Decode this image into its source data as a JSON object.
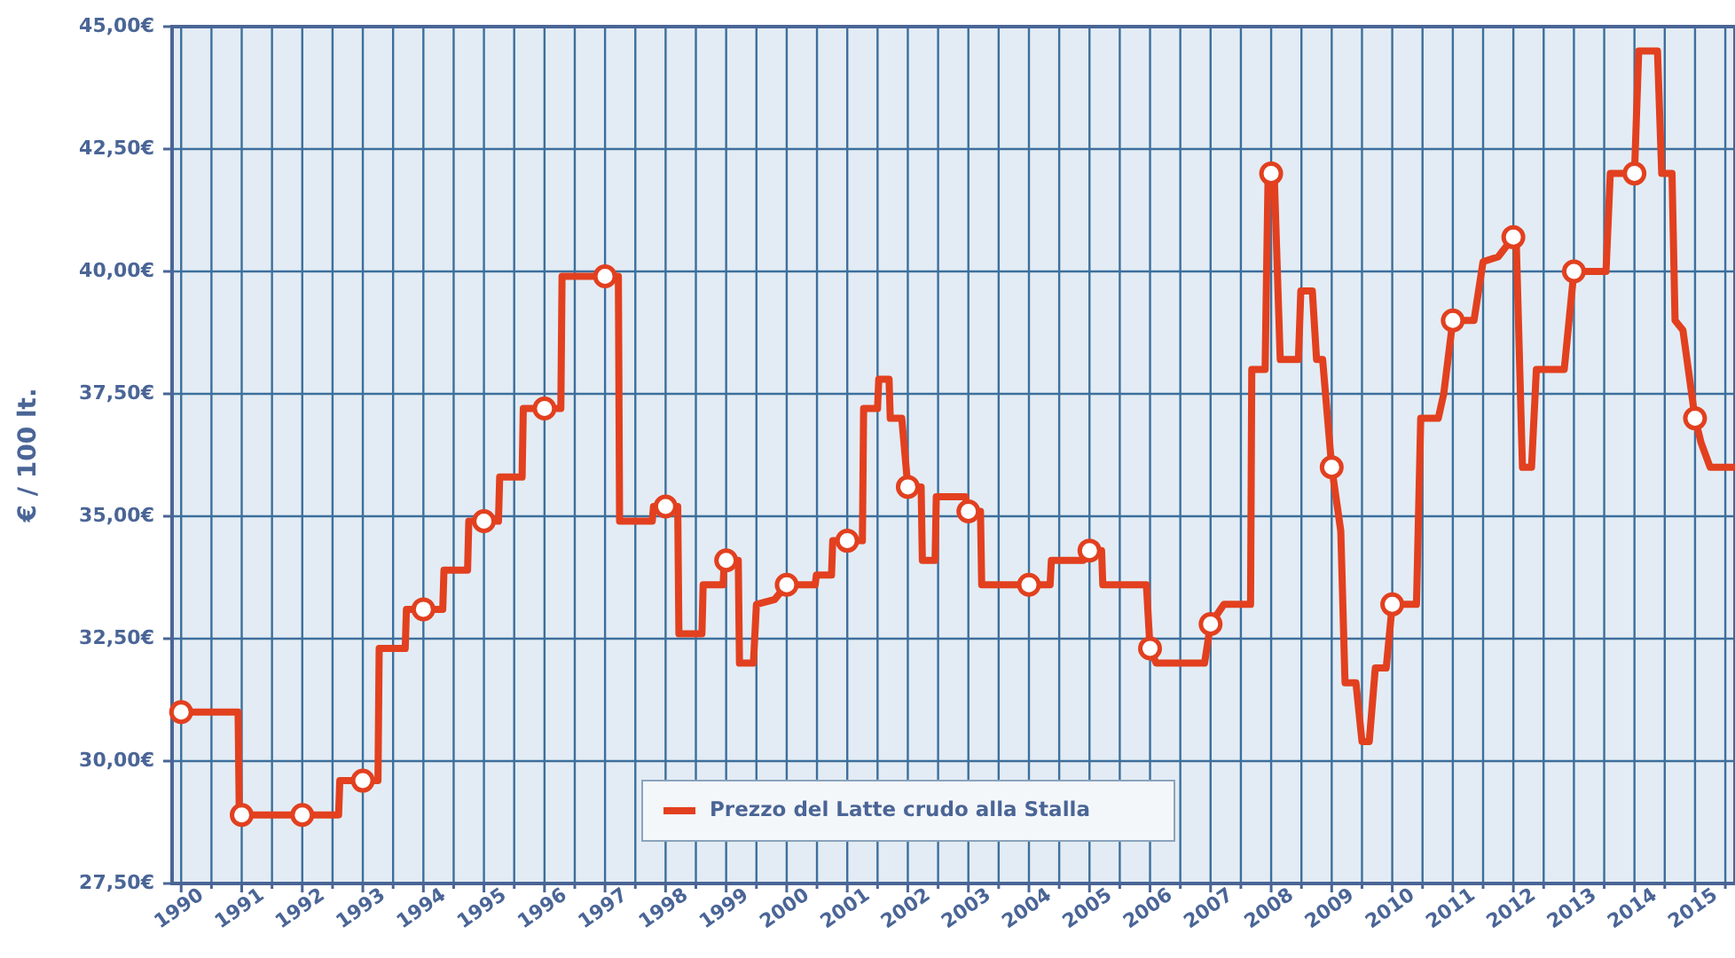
{
  "chart_data": {
    "type": "line",
    "ylabel": "€ / 100 lt.",
    "legend": "bottom",
    "grid": true,
    "xlim": [
      1989.85,
      2015.66
    ],
    "ylim": [
      27.5,
      45
    ],
    "xticks": [
      1990,
      {
        "value": 1990.5,
        "label": null
      },
      1991,
      {
        "value": 1991.5,
        "label": null
      },
      1992,
      {
        "value": 1992.5,
        "label": null
      },
      1993,
      {
        "value": 1993.5,
        "label": null
      },
      1994,
      {
        "value": 1994.5,
        "label": null
      },
      1995,
      {
        "value": 1995.5,
        "label": null
      },
      1996,
      {
        "value": 1996.5,
        "label": null
      },
      1997,
      {
        "value": 1997.5,
        "label": null
      },
      1998,
      {
        "value": 1998.5,
        "label": null
      },
      1999,
      {
        "value": 1999.5,
        "label": null
      },
      2000,
      {
        "value": 2000.5,
        "label": null
      },
      2001,
      {
        "value": 2001.5,
        "label": null
      },
      2002,
      {
        "value": 2002.5,
        "label": null
      },
      2003,
      {
        "value": 2003.5,
        "label": null
      },
      2004,
      {
        "value": 2004.5,
        "label": null
      },
      2005,
      {
        "value": 2005.5,
        "label": null
      },
      2006,
      {
        "value": 2006.5,
        "label": null
      },
      2007,
      {
        "value": 2007.5,
        "label": null
      },
      2008,
      {
        "value": 2008.5,
        "label": null
      },
      2009,
      {
        "value": 2009.5,
        "label": null
      },
      2010,
      {
        "value": 2010.5,
        "label": null
      },
      2011,
      {
        "value": 2011.5,
        "label": null
      },
      2012,
      {
        "value": 2012.5,
        "label": null
      },
      2013,
      {
        "value": 2013.5,
        "label": null
      },
      2014,
      {
        "value": 2014.5,
        "label": null
      },
      2015,
      {
        "value": 2015.5,
        "label": null
      }
    ],
    "yticks": [
      {
        "value": 27.5,
        "label": "27,50€"
      },
      {
        "value": 30,
        "label": "30,00€"
      },
      {
        "value": 32.5,
        "label": "32,50€"
      },
      {
        "value": 35,
        "label": "35,00€"
      },
      {
        "value": 37.5,
        "label": "37,50€"
      },
      {
        "value": 40,
        "label": "40,00€"
      },
      {
        "value": 42.5,
        "label": "42,50€"
      },
      {
        "value": 45,
        "label": "45,00€"
      }
    ],
    "series": [
      {
        "name": "Prezzo del Latte crudo alla Stalla",
        "marker": "none",
        "color": "#e2401f",
        "x": [
          1990,
          1990.94,
          1990.96,
          1992.6,
          1992.62,
          1993.25,
          1993.27,
          1993.7,
          1993.72,
          1994.32,
          1994.34,
          1994.73,
          1994.75,
          1995.24,
          1995.26,
          1995.63,
          1995.65,
          1996.27,
          1996.29,
          1997.22,
          1997.24,
          1997.78,
          1997.8,
          1998.2,
          1998.22,
          1998.6,
          1998.62,
          1998.95,
          1998.97,
          1999.2,
          1999.22,
          1999.45,
          1999.5,
          1999.8,
          2000,
          2000.47,
          2000.49,
          2000.74,
          2000.76,
          2001.25,
          2001.27,
          2001.5,
          2001.52,
          2001.69,
          2001.71,
          2001.9,
          2002,
          2002.22,
          2002.24,
          2002.45,
          2002.47,
          2002.95,
          2003,
          2003.2,
          2003.22,
          2004.35,
          2004.37,
          2004.9,
          2004.95,
          2005.2,
          2005.22,
          2005.94,
          2006,
          2006.1,
          2006.9,
          2007,
          2007.22,
          2007.66,
          2007.68,
          2007.9,
          2007.95,
          2008.05,
          2008.15,
          2008.45,
          2008.49,
          2008.68,
          2008.75,
          2008.85,
          2009,
          2009.15,
          2009.22,
          2009.4,
          2009.5,
          2009.62,
          2009.72,
          2009.9,
          2010,
          2010.4,
          2010.47,
          2010.76,
          2010.85,
          2011,
          2011.35,
          2011.5,
          2011.75,
          2012,
          2012.05,
          2012.15,
          2012.3,
          2012.38,
          2012.84,
          2013,
          2013.53,
          2013.6,
          2014,
          2014.07,
          2014.38,
          2014.45,
          2014.62,
          2014.67,
          2014.8,
          2015,
          2015.1,
          2015.25,
          2015.66
        ],
        "values": [
          31.0,
          31.0,
          28.9,
          28.9,
          29.6,
          29.6,
          32.3,
          32.3,
          33.1,
          33.1,
          33.9,
          33.9,
          34.9,
          34.9,
          35.8,
          35.8,
          37.2,
          37.2,
          39.9,
          39.9,
          34.9,
          34.9,
          35.2,
          35.2,
          32.6,
          32.6,
          33.6,
          33.6,
          34.1,
          34.1,
          32.0,
          32.0,
          33.2,
          33.3,
          33.6,
          33.6,
          33.8,
          33.8,
          34.5,
          34.5,
          37.2,
          37.2,
          37.8,
          37.8,
          37.0,
          37.0,
          35.6,
          35.6,
          34.1,
          34.1,
          35.4,
          35.4,
          35.1,
          35.1,
          33.6,
          33.6,
          34.1,
          34.1,
          34.3,
          34.3,
          33.6,
          33.6,
          32.3,
          32.0,
          32.0,
          32.8,
          33.2,
          33.2,
          38.0,
          38.0,
          42.0,
          42.0,
          38.2,
          38.2,
          39.6,
          39.6,
          38.2,
          38.2,
          36.0,
          34.7,
          31.6,
          31.6,
          30.4,
          30.4,
          31.9,
          31.9,
          33.2,
          33.2,
          37.0,
          37.0,
          37.5,
          39.0,
          39.0,
          40.2,
          40.3,
          40.7,
          40.5,
          36.0,
          36.0,
          38.0,
          38.0,
          40.0,
          40.0,
          42.0,
          42.0,
          44.5,
          44.5,
          42.0,
          42.0,
          39.0,
          38.8,
          37.0,
          36.5,
          36.0,
          36.0
        ]
      },
      {
        "type": "scatter",
        "marker": "circle",
        "color": "#e2401f",
        "x": [
          1990,
          1991,
          1992,
          1993,
          1994,
          1995,
          1996,
          1997,
          1998,
          1999,
          2000,
          2001,
          2002,
          2003,
          2004,
          2005,
          2006,
          2007,
          2008,
          2009,
          2010,
          2011,
          2012,
          2013,
          2014,
          2015
        ],
        "values": [
          31.0,
          28.9,
          28.9,
          29.6,
          33.1,
          34.9,
          37.2,
          39.9,
          35.2,
          34.1,
          33.6,
          34.5,
          35.6,
          35.1,
          33.6,
          34.3,
          32.3,
          32.8,
          42.0,
          36.0,
          33.2,
          39.0,
          40.7,
          40.0,
          42.0,
          37.0
        ]
      }
    ]
  }
}
